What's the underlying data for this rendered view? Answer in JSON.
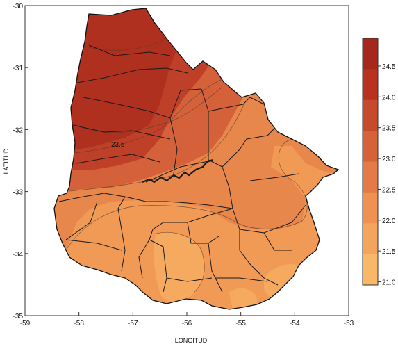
{
  "map": {
    "x_axis_label": "LONGITUD",
    "y_axis_label": "LATITUD",
    "x_ticks": [
      "-59",
      "-58",
      "-57",
      "-56",
      "-55",
      "-54",
      "-53"
    ],
    "y_ticks": [
      "-30",
      "-31",
      "-32",
      "-33",
      "-34",
      "-35"
    ],
    "contour_label": "23.5",
    "colorbar": {
      "ticks": [
        "24.5",
        "24.0",
        "23.5",
        "23.0",
        "22.5",
        "22.0",
        "21.5",
        "21.0"
      ],
      "colors": [
        "#a6271b",
        "#b8321f",
        "#c64a2c",
        "#d6623a",
        "#e47b46",
        "#ef9150",
        "#f4a45c",
        "#f9b868"
      ]
    },
    "zone_colors": {
      "z24": "#b0301f",
      "z235": "#bf4028",
      "z23": "#d4613a",
      "z225": "#e8874c",
      "z22": "#f09a56",
      "z215": "#f5aa60"
    }
  }
}
